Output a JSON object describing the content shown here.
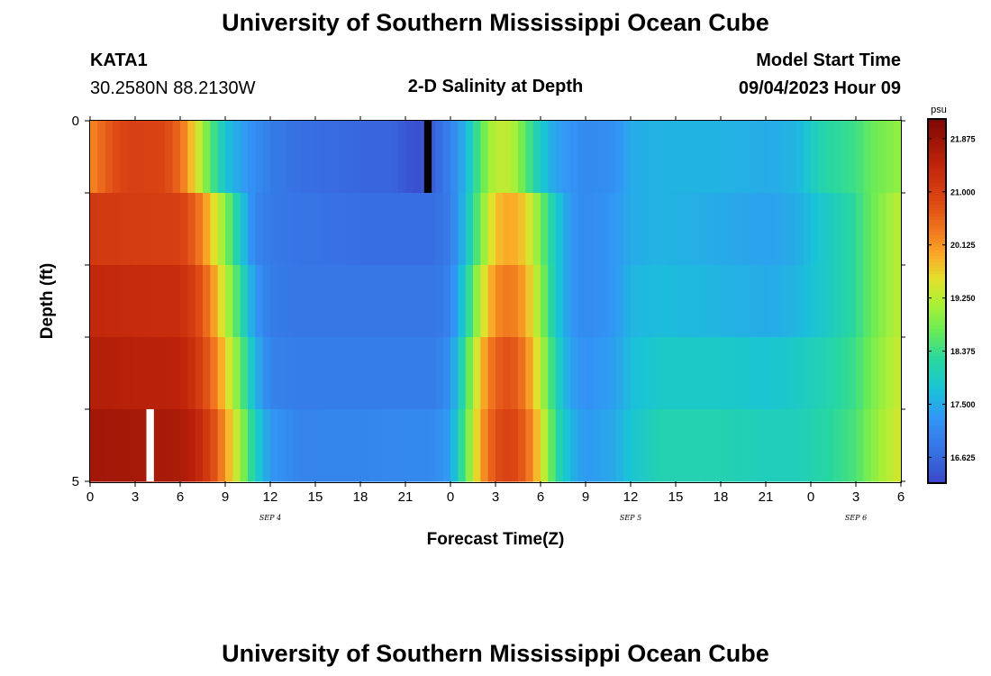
{
  "header": {
    "title": "University of Southern Mississippi Ocean Cube",
    "station": "KATA1",
    "coords": "30.2580N  88.2130W",
    "subtitle": "2-D Salinity at Depth",
    "model_label": "Model Start Time",
    "model_time": "09/04/2023 Hour 09"
  },
  "footer": {
    "title": "University of Southern Mississippi Ocean Cube"
  },
  "chart_data": {
    "type": "heatmap",
    "xlabel": "Forecast Time(Z)",
    "ylabel": "Depth (ft)",
    "x_tick_labels": [
      "0",
      "3",
      "6",
      "9",
      "12",
      "15",
      "18",
      "21",
      "0",
      "3",
      "6",
      "9",
      "12",
      "15",
      "18",
      "21",
      "0",
      "3",
      "6"
    ],
    "date_labels": [
      {
        "label": "SEP 4",
        "at_hour": 12
      },
      {
        "label": "SEP 5",
        "at_hour": 36
      },
      {
        "label": "SEP 6",
        "at_hour": 51
      }
    ],
    "x_range_hours": [
      0,
      54
    ],
    "y_tick_labels": [
      {
        "label": "0",
        "depth": 0
      },
      {
        "label": "5",
        "depth": 5
      }
    ],
    "y_range_ft": [
      0,
      5
    ],
    "layers": 5,
    "colorbar": {
      "unit": "psu",
      "range": [
        16.2,
        22.2
      ],
      "ticks": [
        "21.875",
        "21.000",
        "20.125",
        "19.250",
        "18.375",
        "17.500",
        "16.625"
      ],
      "tick_values": [
        21.875,
        21.0,
        20.125,
        19.25,
        18.375,
        17.5,
        16.625
      ]
    },
    "salinity_profiles_by_layer": [
      {
        "layer": "top",
        "points": [
          [
            0,
            20.2
          ],
          [
            1,
            20.6
          ],
          [
            2,
            20.9
          ],
          [
            3,
            21.0
          ],
          [
            5,
            20.9
          ],
          [
            6,
            20.5
          ],
          [
            7,
            19.6
          ],
          [
            8,
            18.6
          ],
          [
            9,
            17.8
          ],
          [
            10,
            17.4
          ],
          [
            12,
            16.9
          ],
          [
            14,
            16.7
          ],
          [
            18,
            16.6
          ],
          [
            20,
            16.6
          ],
          [
            21,
            16.4
          ],
          [
            22,
            16.3
          ],
          [
            23,
            16.6
          ],
          [
            24,
            17.0
          ],
          [
            25,
            17.6
          ],
          [
            26,
            18.6
          ],
          [
            27,
            19.3
          ],
          [
            28,
            19.3
          ],
          [
            29,
            18.6
          ],
          [
            30,
            17.9
          ],
          [
            31,
            17.4
          ],
          [
            33,
            17.1
          ],
          [
            35,
            17.2
          ],
          [
            36,
            17.5
          ],
          [
            38,
            17.6
          ],
          [
            42,
            17.6
          ],
          [
            45,
            17.5
          ],
          [
            47,
            17.6
          ],
          [
            49,
            18.2
          ],
          [
            51,
            18.4
          ],
          [
            52,
            18.7
          ],
          [
            54,
            19.0
          ]
        ]
      },
      {
        "layer": "2",
        "points": [
          [
            0,
            21.1
          ],
          [
            6,
            21.0
          ],
          [
            7,
            20.6
          ],
          [
            8,
            19.8
          ],
          [
            9,
            18.9
          ],
          [
            10,
            17.9
          ],
          [
            11,
            17.0
          ],
          [
            13,
            16.8
          ],
          [
            18,
            16.7
          ],
          [
            23,
            16.7
          ],
          [
            24,
            16.9
          ],
          [
            25,
            17.7
          ],
          [
            26,
            18.8
          ],
          [
            27,
            19.8
          ],
          [
            28,
            20.0
          ],
          [
            29,
            19.7
          ],
          [
            30,
            18.8
          ],
          [
            31,
            17.9
          ],
          [
            32,
            17.3
          ],
          [
            33,
            17.1
          ],
          [
            35,
            17.3
          ],
          [
            36,
            17.5
          ],
          [
            38,
            17.6
          ],
          [
            42,
            17.5
          ],
          [
            45,
            17.4
          ],
          [
            47,
            17.5
          ],
          [
            49,
            17.9
          ],
          [
            51,
            18.3
          ],
          [
            52,
            18.7
          ],
          [
            54,
            19.3
          ]
        ]
      },
      {
        "layer": "3",
        "points": [
          [
            0,
            21.4
          ],
          [
            6,
            21.3
          ],
          [
            7,
            21.0
          ],
          [
            8,
            20.3
          ],
          [
            9,
            19.3
          ],
          [
            10,
            18.3
          ],
          [
            11,
            17.3
          ],
          [
            12,
            16.9
          ],
          [
            14,
            16.8
          ],
          [
            23,
            16.8
          ],
          [
            24,
            17.0
          ],
          [
            25,
            18.0
          ],
          [
            26,
            19.3
          ],
          [
            27,
            20.2
          ],
          [
            28,
            20.4
          ],
          [
            29,
            20.0
          ],
          [
            30,
            19.0
          ],
          [
            31,
            17.9
          ],
          [
            32,
            17.3
          ],
          [
            33,
            17.1
          ],
          [
            35,
            17.3
          ],
          [
            36,
            17.6
          ],
          [
            38,
            17.7
          ],
          [
            42,
            17.6
          ],
          [
            45,
            17.5
          ],
          [
            47,
            17.6
          ],
          [
            49,
            17.9
          ],
          [
            51,
            18.3
          ],
          [
            52,
            18.7
          ],
          [
            54,
            19.3
          ]
        ]
      },
      {
        "layer": "4",
        "points": [
          [
            0,
            21.6
          ],
          [
            6,
            21.5
          ],
          [
            7,
            21.2
          ],
          [
            8,
            20.6
          ],
          [
            9,
            19.7
          ],
          [
            10,
            18.7
          ],
          [
            11,
            17.6
          ],
          [
            12,
            17.0
          ],
          [
            14,
            16.9
          ],
          [
            23,
            16.9
          ],
          [
            24,
            17.2
          ],
          [
            25,
            18.4
          ],
          [
            26,
            19.8
          ],
          [
            27,
            20.6
          ],
          [
            28,
            20.8
          ],
          [
            29,
            20.3
          ],
          [
            30,
            19.3
          ],
          [
            31,
            18.1
          ],
          [
            32,
            17.4
          ],
          [
            33,
            17.2
          ],
          [
            35,
            17.4
          ],
          [
            36,
            17.7
          ],
          [
            38,
            17.9
          ],
          [
            42,
            17.9
          ],
          [
            45,
            17.8
          ],
          [
            47,
            17.9
          ],
          [
            49,
            18.1
          ],
          [
            51,
            18.4
          ],
          [
            52,
            18.8
          ],
          [
            54,
            19.4
          ]
        ]
      },
      {
        "layer": "bottom",
        "points": [
          [
            0,
            21.8
          ],
          [
            6,
            21.7
          ],
          [
            7,
            21.5
          ],
          [
            8,
            21.0
          ],
          [
            9,
            20.1
          ],
          [
            10,
            19.1
          ],
          [
            11,
            18.0
          ],
          [
            12,
            17.3
          ],
          [
            14,
            17.0
          ],
          [
            23,
            17.1
          ],
          [
            24,
            17.4
          ],
          [
            25,
            18.6
          ],
          [
            26,
            20.0
          ],
          [
            27,
            20.8
          ],
          [
            28,
            21.0
          ],
          [
            29,
            20.6
          ],
          [
            30,
            19.6
          ],
          [
            31,
            18.3
          ],
          [
            32,
            17.6
          ],
          [
            33,
            17.3
          ],
          [
            35,
            17.5
          ],
          [
            36,
            17.8
          ],
          [
            38,
            18.1
          ],
          [
            42,
            18.1
          ],
          [
            45,
            18.0
          ],
          [
            47,
            18.0
          ],
          [
            49,
            18.2
          ],
          [
            51,
            18.5
          ],
          [
            52,
            18.9
          ],
          [
            54,
            19.5
          ]
        ]
      }
    ],
    "marked_cells": [
      {
        "layer": "top",
        "hour": 22.5,
        "color": "#000000"
      },
      {
        "layer": "bottom",
        "hour": 4,
        "color": "#ffffff"
      }
    ]
  }
}
